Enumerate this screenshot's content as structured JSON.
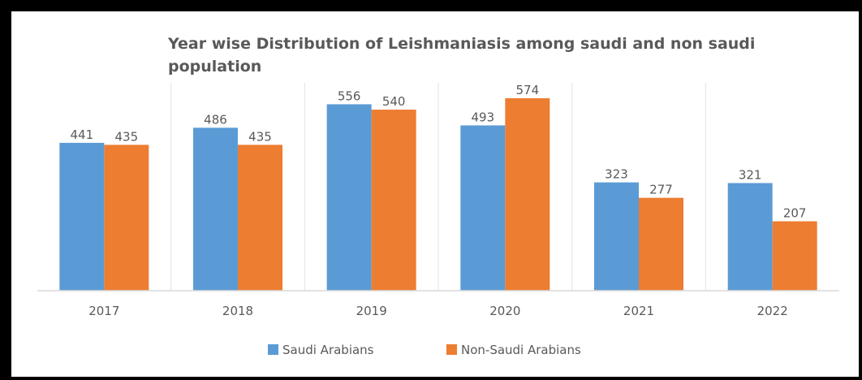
{
  "chart_data": {
    "type": "bar",
    "title_lines": [
      "Year wise Distribution of Leishmaniasis among saudi and non saudi",
      "population"
    ],
    "categories": [
      "2017",
      "2018",
      "2019",
      "2020",
      "2021",
      "2022"
    ],
    "series": [
      {
        "name": "Saudi Arabians",
        "color": "#5B9BD5",
        "values": [
          441,
          486,
          556,
          493,
          323,
          321
        ]
      },
      {
        "name": "Non-Saudi Arabians",
        "color": "#ED7D31",
        "values": [
          435,
          435,
          540,
          574,
          277,
          207
        ]
      }
    ],
    "ylim": [
      0,
      620
    ],
    "data_labels": true,
    "grid": "vertical separators between categories",
    "legend_position": "bottom"
  }
}
